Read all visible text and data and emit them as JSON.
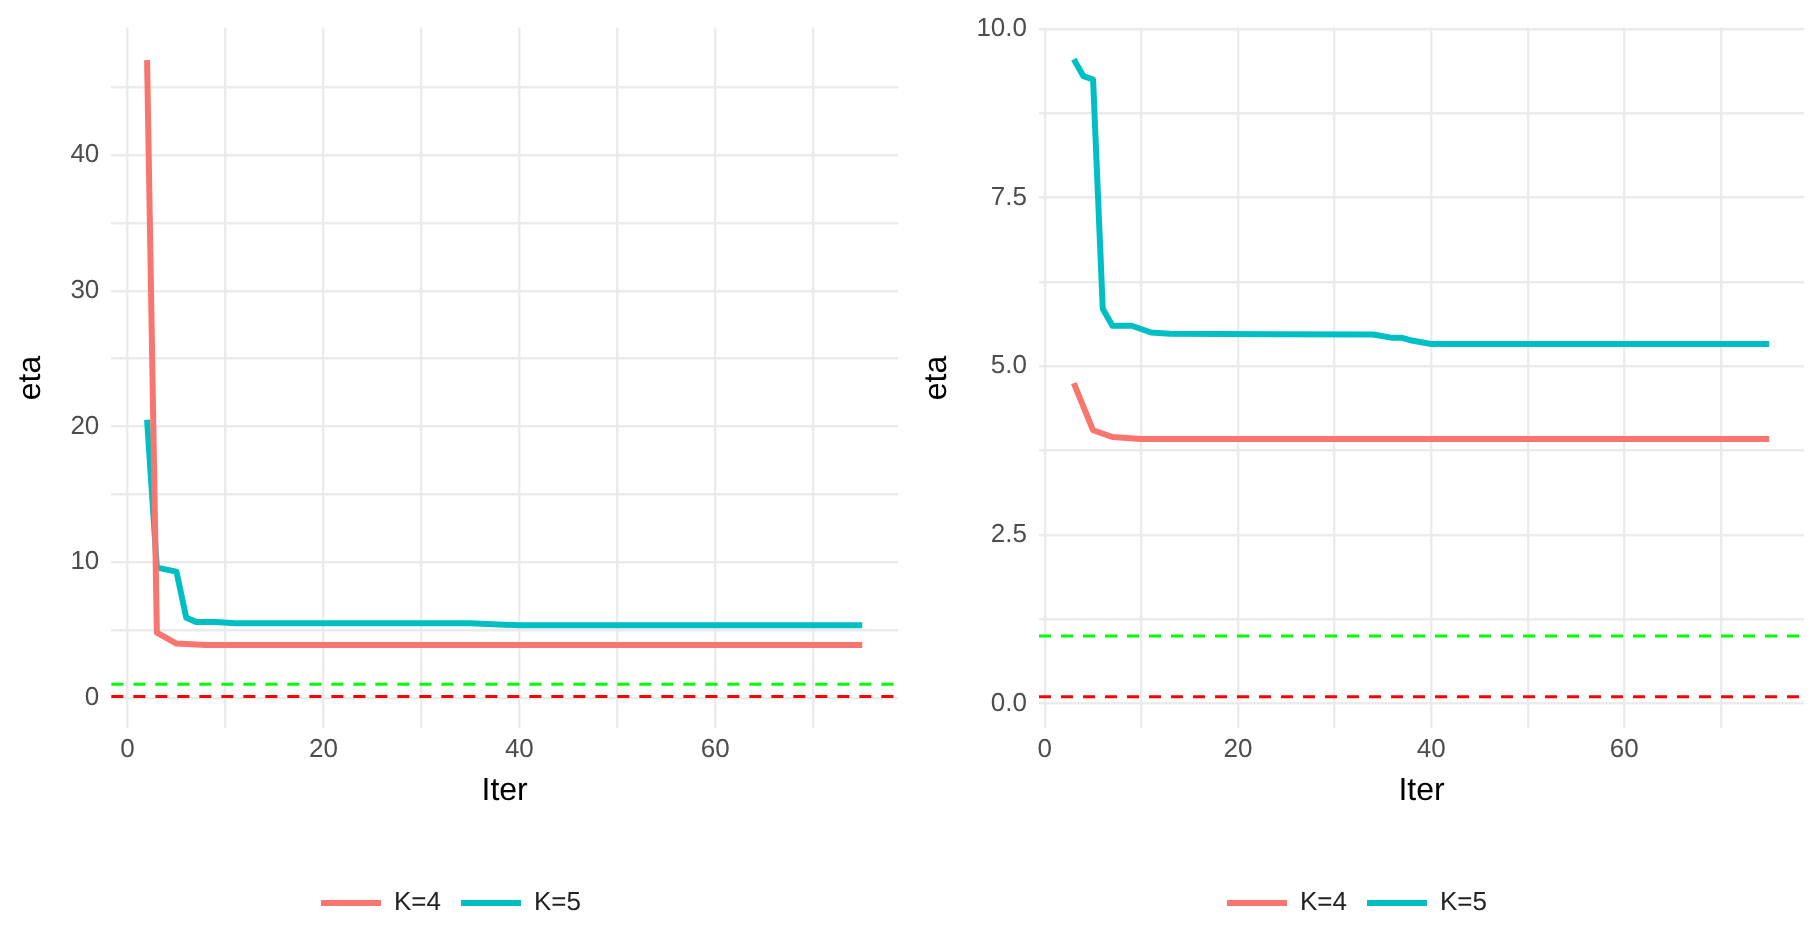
{
  "chart_data": [
    {
      "type": "line",
      "xlabel": "Iter",
      "ylabel": "eta",
      "legend": "bottom",
      "grid": true,
      "line_style": "solid",
      "marker": "none",
      "xlim": [
        -1.65,
        78.65
      ],
      "ylim": [
        -2.25,
        49.4
      ],
      "xticks": [
        0,
        {
          "value": 10,
          "label": null
        },
        20,
        {
          "value": 30,
          "label": null
        },
        40,
        {
          "value": 50,
          "label": null
        },
        60,
        {
          "value": 70,
          "label": null
        }
      ],
      "yticks": [
        0,
        {
          "value": 5,
          "label": null
        },
        10,
        {
          "value": 15,
          "label": null
        },
        20,
        {
          "value": 25,
          "label": null
        },
        30,
        {
          "value": 35,
          "label": null
        },
        40,
        {
          "value": 45,
          "label": null
        }
      ],
      "series": [
        {
          "name": "K=4",
          "color": "#f8766d",
          "x": [
            2,
            3,
            5,
            8,
            75
          ],
          "values": [
            47,
            4.8,
            4.0,
            3.9,
            3.9
          ]
        },
        {
          "name": "K=5",
          "color": "#00bfc4",
          "x": [
            2,
            3,
            5,
            6,
            7,
            9,
            11,
            35,
            40,
            75
          ],
          "values": [
            20.5,
            9.6,
            9.3,
            5.9,
            5.6,
            5.6,
            5.5,
            5.5,
            5.35,
            5.35
          ]
        }
      ],
      "ref_lines": [
        {
          "axis": "y",
          "value": 1,
          "color": "#00ff00",
          "line_style": "dashed"
        },
        {
          "axis": "y",
          "value": 0.1,
          "color": "#ff0000",
          "line_style": "dashed"
        }
      ]
    },
    {
      "type": "line",
      "xlabel": "Iter",
      "ylabel": "eta",
      "legend": "bottom",
      "grid": true,
      "line_style": "solid",
      "marker": "none",
      "xlim": [
        -0.6,
        78.6
      ],
      "ylim": [
        -0.37,
        10.02
      ],
      "xticks": [
        0,
        {
          "value": 10,
          "label": null
        },
        20,
        {
          "value": 30,
          "label": null
        },
        40,
        {
          "value": 50,
          "label": null
        },
        60,
        {
          "value": 70,
          "label": null
        }
      ],
      "yticks": [
        {
          "value": 0,
          "label": "0.0"
        },
        {
          "value": 1.25,
          "label": null
        },
        2.5,
        {
          "value": 3.75,
          "label": null
        },
        {
          "value": 5,
          "label": "5.0"
        },
        {
          "value": 6.25,
          "label": null
        },
        7.5,
        {
          "value": 8.75,
          "label": null
        },
        {
          "value": 10,
          "label": "10.0"
        }
      ],
      "series": [
        {
          "name": "K=4",
          "color": "#f8766d",
          "x": [
            3,
            5,
            7,
            10,
            75
          ],
          "values": [
            4.75,
            4.05,
            3.95,
            3.92,
            3.92
          ]
        },
        {
          "name": "K=5",
          "color": "#00bfc4",
          "x": [
            3,
            4,
            5,
            6,
            7,
            9,
            11,
            13,
            34,
            36,
            37,
            38,
            40,
            75
          ],
          "values": [
            9.55,
            9.3,
            9.25,
            5.85,
            5.6,
            5.6,
            5.5,
            5.48,
            5.47,
            5.42,
            5.42,
            5.38,
            5.33,
            5.33
          ]
        }
      ],
      "ref_lines": [
        {
          "axis": "y",
          "value": 1,
          "color": "#00ff00",
          "line_style": "dashed"
        },
        {
          "axis": "y",
          "value": 0.1,
          "color": "#ff0000",
          "line_style": "dashed"
        }
      ]
    }
  ]
}
